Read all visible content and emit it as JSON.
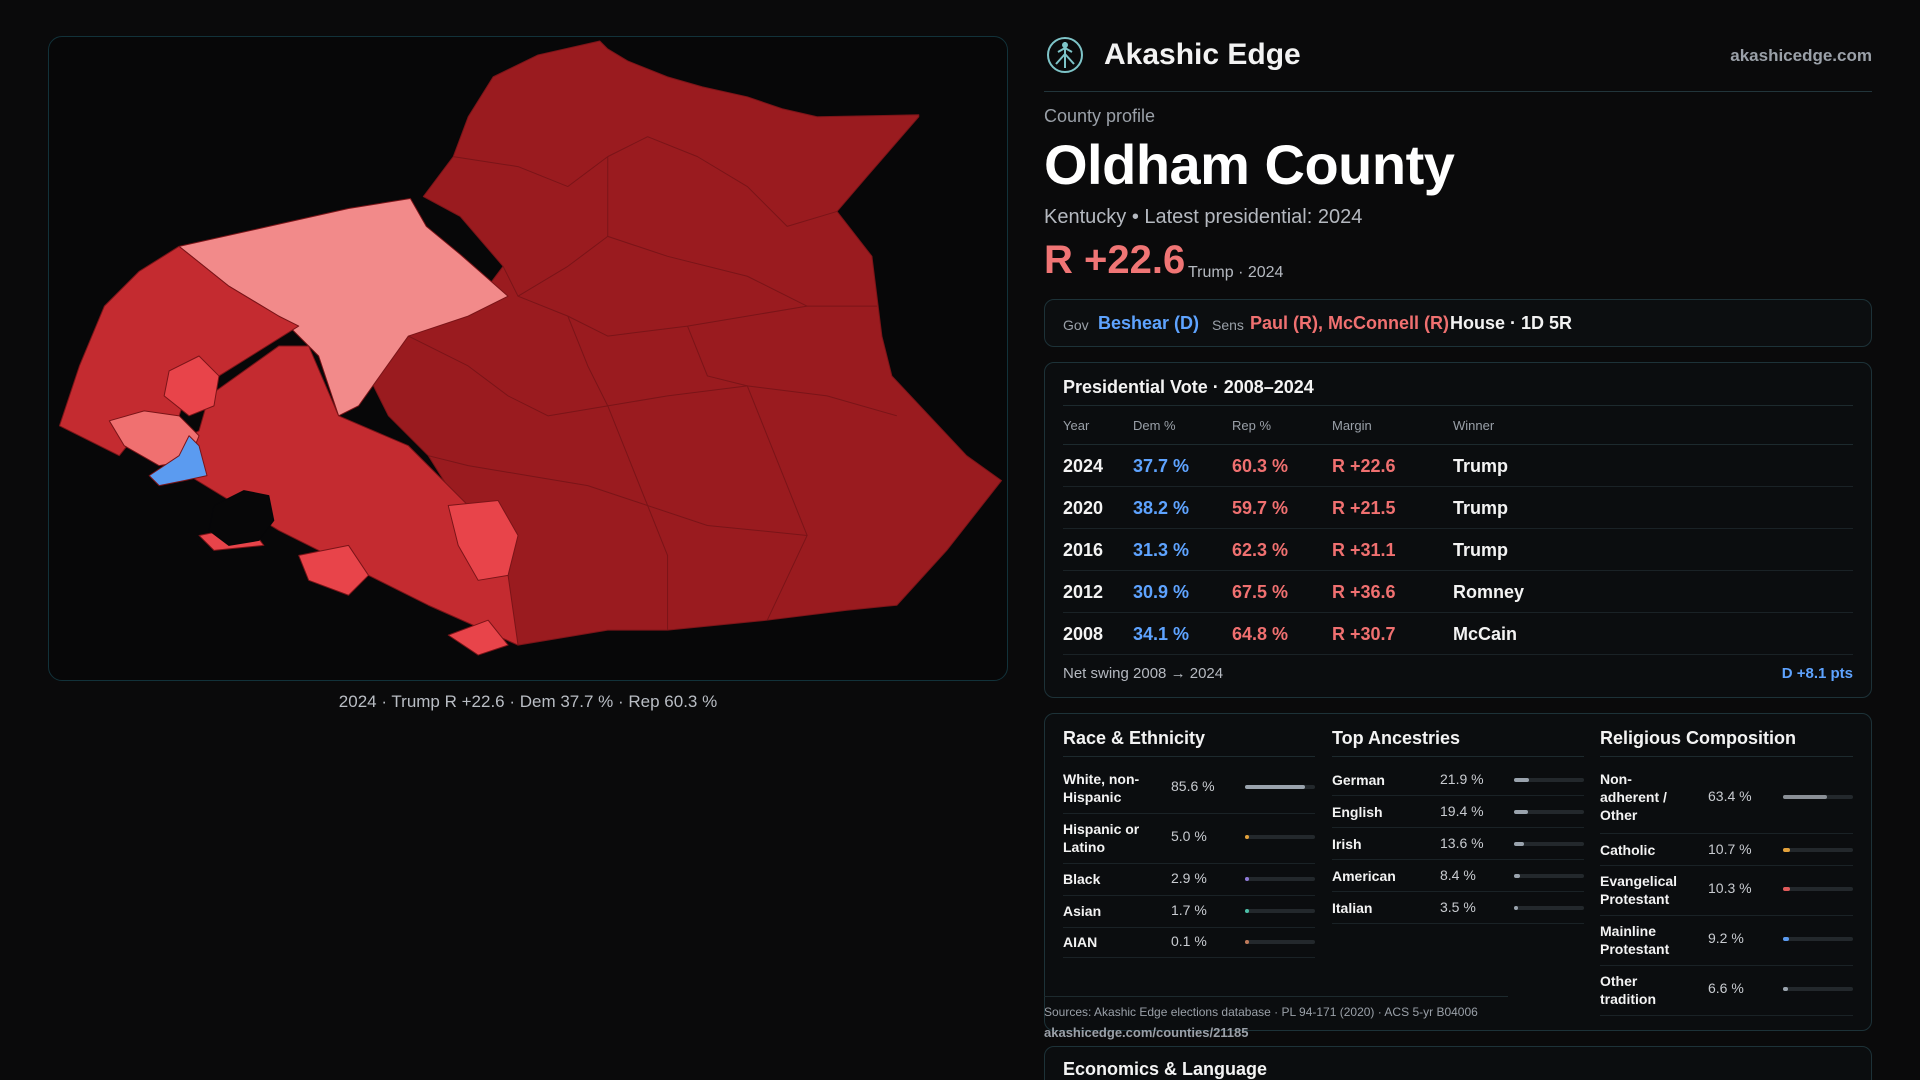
{
  "map": {
    "caption": "2024 · Trump R +22.6 · Dem 37.7 % · Rep 60.3 %",
    "colors": {
      "dark_red": "#9a1b1f",
      "mid_red": "#c12a2f",
      "red": "#e04449",
      "light_red": "#f28a8a",
      "dem_blue": "#5b9bf0"
    }
  },
  "brand": {
    "name": "Akashic Edge",
    "url": "akashicedge.com",
    "logo_icon": "tree-of-life-icon"
  },
  "profile": {
    "label": "County profile",
    "county": "Oldham County",
    "subline": "Kentucky • Latest presidential: 2024",
    "margin": "R +22.6",
    "margin_note": "Trump · 2024"
  },
  "officials": {
    "gov_label": "Gov",
    "gov": "Beshear (D)",
    "sens_label": "Sens",
    "sens": "Paul (R), McConnell (R)",
    "house": "House · 1D 5R"
  },
  "presidential": {
    "title": "Presidential Vote · 2008–2024",
    "headers": [
      "Year",
      "Dem %",
      "Rep %",
      "Margin",
      "Winner"
    ],
    "rows": [
      {
        "year": "2024",
        "dem": "37.7 %",
        "rep": "60.3 %",
        "margin": "R +22.6",
        "winner": "Trump"
      },
      {
        "year": "2020",
        "dem": "38.2 %",
        "rep": "59.7 %",
        "margin": "R +21.5",
        "winner": "Trump"
      },
      {
        "year": "2016",
        "dem": "31.3 %",
        "rep": "62.3 %",
        "margin": "R +31.1",
        "winner": "Trump"
      },
      {
        "year": "2012",
        "dem": "30.9 %",
        "rep": "67.5 %",
        "margin": "R +36.6",
        "winner": "Romney"
      },
      {
        "year": "2008",
        "dem": "34.1 %",
        "rep": "64.8 %",
        "margin": "R +30.7",
        "winner": "McCain"
      }
    ],
    "swing_label": "Net swing 2008 → 2024",
    "swing_value": "D +8.1 pts"
  },
  "race": {
    "title": "Race & Ethnicity",
    "items": [
      {
        "label": "White, non-Hispanic",
        "value": "85.6 %",
        "pct": 85.6,
        "color": "#9aa3ad"
      },
      {
        "label": "Hispanic or Latino",
        "value": "5.0 %",
        "pct": 5.0,
        "color": "#e3a13b"
      },
      {
        "label": "Black",
        "value": "2.9 %",
        "pct": 2.9,
        "color": "#8f7ad8"
      },
      {
        "label": "Asian",
        "value": "1.7 %",
        "pct": 1.7,
        "color": "#4cc0a8"
      },
      {
        "label": "AIAN",
        "value": "0.1 %",
        "pct": 0.1,
        "color": "#c07a5a"
      }
    ]
  },
  "ancestry": {
    "title": "Top Ancestries",
    "items": [
      {
        "label": "German",
        "value": "21.9 %",
        "pct": 21.9,
        "color": "#9aa3ad"
      },
      {
        "label": "English",
        "value": "19.4 %",
        "pct": 19.4,
        "color": "#9aa3ad"
      },
      {
        "label": "Irish",
        "value": "13.6 %",
        "pct": 13.6,
        "color": "#9aa3ad"
      },
      {
        "label": "American",
        "value": "8.4 %",
        "pct": 8.4,
        "color": "#9aa3ad"
      },
      {
        "label": "Italian",
        "value": "3.5 %",
        "pct": 3.5,
        "color": "#9aa3ad"
      }
    ]
  },
  "religion": {
    "title": "Religious Composition",
    "items": [
      {
        "label": "Non-adherent / Other",
        "value": "63.4 %",
        "pct": 63.4,
        "color": "#8a8f96"
      },
      {
        "label": "Catholic",
        "value": "10.7 %",
        "pct": 10.7,
        "color": "#e3a13b"
      },
      {
        "label": "Evangelical Protestant",
        "value": "10.3 %",
        "pct": 10.3,
        "color": "#e05a5a"
      },
      {
        "label": "Mainline Protestant",
        "value": "9.2 %",
        "pct": 9.2,
        "color": "#5b9bf0"
      },
      {
        "label": "Other tradition",
        "value": "6.6 %",
        "pct": 6.6,
        "color": "#9aa3ad"
      }
    ]
  },
  "sources": {
    "text": "Sources: Akashic Edge elections database · PL 94-171 (2020) · ACS 5-yr B04006",
    "url": "akashicedge.com/counties/21185"
  },
  "economics": {
    "title": "Economics & Language"
  }
}
